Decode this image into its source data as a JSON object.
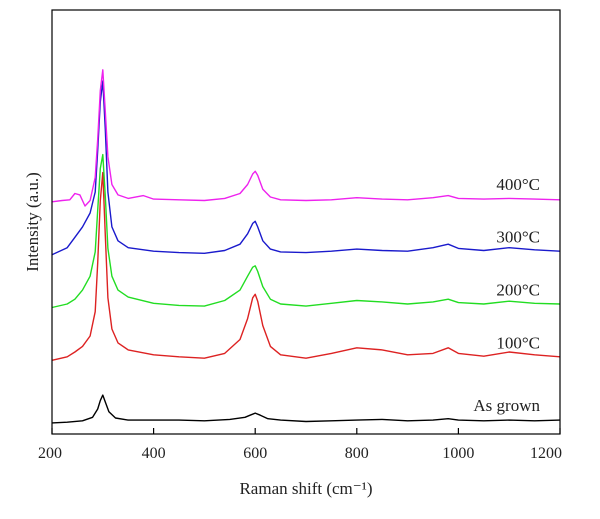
{
  "chart_data": {
    "type": "line",
    "title": "",
    "xlabel": "Raman shift (cm⁻¹)",
    "ylabel": "Intensity (a.u.)",
    "xlim": [
      200,
      1200
    ],
    "xticks": [
      200,
      400,
      600,
      800,
      1000,
      1200
    ],
    "grid": false,
    "y_tick_labels": false,
    "series": [
      {
        "name": "As grown",
        "color": "#000000",
        "baseline": 0.6,
        "x": [
          200,
          230,
          260,
          280,
          290,
          295,
          300,
          305,
          312,
          325,
          350,
          400,
          450,
          500,
          550,
          580,
          590,
          600,
          610,
          625,
          650,
          700,
          750,
          800,
          850,
          900,
          950,
          980,
          1000,
          1050,
          1100,
          1150,
          1200
        ],
        "y": [
          0,
          0.1,
          0.3,
          0.8,
          2.0,
          3.2,
          4.0,
          3.0,
          1.6,
          0.7,
          0.4,
          0.4,
          0.4,
          0.3,
          0.5,
          0.8,
          1.1,
          1.4,
          1.1,
          0.6,
          0.4,
          0.2,
          0.3,
          0.4,
          0.5,
          0.3,
          0.4,
          0.6,
          0.4,
          0.3,
          0.4,
          0.3,
          0.4
        ]
      },
      {
        "name": "100°C",
        "color": "#dd2222",
        "baseline": 9.6,
        "x": [
          200,
          230,
          245,
          260,
          275,
          285,
          290,
          295,
          300,
          305,
          310,
          318,
          330,
          350,
          400,
          450,
          500,
          540,
          570,
          585,
          595,
          600,
          605,
          615,
          630,
          650,
          700,
          750,
          800,
          850,
          900,
          950,
          980,
          1000,
          1050,
          1100,
          1150,
          1200
        ],
        "y": [
          0,
          0.5,
          1.2,
          2.0,
          3.5,
          7.0,
          14.0,
          23.0,
          27.0,
          18.0,
          9.0,
          4.5,
          2.5,
          1.5,
          0.8,
          0.5,
          0.3,
          1.0,
          3.0,
          6.0,
          9.0,
          9.5,
          8.5,
          5.0,
          2.0,
          0.8,
          0.3,
          1.0,
          1.8,
          1.5,
          0.8,
          1.0,
          1.8,
          1.0,
          0.6,
          1.2,
          0.8,
          0.5
        ]
      },
      {
        "name": "200°C",
        "color": "#22dd22",
        "baseline": 17.2,
        "x": [
          200,
          230,
          245,
          260,
          275,
          285,
          290,
          295,
          300,
          305,
          310,
          318,
          330,
          350,
          400,
          450,
          500,
          540,
          570,
          585,
          595,
          600,
          605,
          615,
          630,
          650,
          700,
          750,
          800,
          850,
          900,
          950,
          980,
          1000,
          1050,
          1100,
          1150,
          1200
        ],
        "y": [
          0,
          0.5,
          1.2,
          2.5,
          4.5,
          8.0,
          14.0,
          20.0,
          22.0,
          16.0,
          8.5,
          4.5,
          2.5,
          1.5,
          0.6,
          0.3,
          0.2,
          1.0,
          2.5,
          4.5,
          5.8,
          6.0,
          5.2,
          3.0,
          1.2,
          0.5,
          0.2,
          0.6,
          1.0,
          0.8,
          0.5,
          0.8,
          1.2,
          0.7,
          0.5,
          0.9,
          0.6,
          0.5
        ]
      },
      {
        "name": "300°C",
        "color": "#1a1acc",
        "baseline": 24.8,
        "x": [
          200,
          230,
          245,
          260,
          275,
          285,
          290,
          295,
          300,
          305,
          310,
          318,
          330,
          350,
          400,
          450,
          500,
          540,
          570,
          585,
          595,
          600,
          605,
          615,
          630,
          650,
          700,
          750,
          800,
          850,
          900,
          950,
          980,
          1000,
          1050,
          1100,
          1150,
          1200
        ],
        "y": [
          0,
          1.0,
          2.5,
          4.0,
          6.0,
          9.0,
          15.0,
          22.0,
          25.0,
          18.0,
          9.0,
          4.0,
          2.0,
          1.0,
          0.5,
          0.3,
          0.2,
          0.6,
          1.5,
          3.0,
          4.5,
          4.8,
          4.0,
          2.0,
          0.8,
          0.4,
          0.3,
          0.5,
          0.8,
          0.6,
          0.5,
          1.0,
          1.5,
          0.9,
          0.6,
          1.0,
          0.7,
          0.5
        ]
      },
      {
        "name": "400°C",
        "color": "#ee22ee",
        "baseline": 32.4,
        "x": [
          200,
          220,
          235,
          245,
          255,
          265,
          275,
          285,
          290,
          295,
          300,
          305,
          310,
          318,
          330,
          350,
          380,
          400,
          450,
          500,
          540,
          570,
          585,
          595,
          600,
          605,
          615,
          630,
          650,
          700,
          750,
          800,
          850,
          900,
          950,
          980,
          1000,
          1050,
          1100,
          1150,
          1200
        ],
        "y": [
          0,
          0.2,
          0.3,
          1.2,
          1.0,
          -0.6,
          0.2,
          3.5,
          9.0,
          16.0,
          19.0,
          13.0,
          6.5,
          2.5,
          1.0,
          0.5,
          0.9,
          0.4,
          0.3,
          0.2,
          0.5,
          1.2,
          2.5,
          4.0,
          4.4,
          3.8,
          1.8,
          0.7,
          0.3,
          0.2,
          0.3,
          0.6,
          0.4,
          0.3,
          0.6,
          0.9,
          0.5,
          0.4,
          0.5,
          0.4,
          0.3
        ]
      }
    ]
  }
}
